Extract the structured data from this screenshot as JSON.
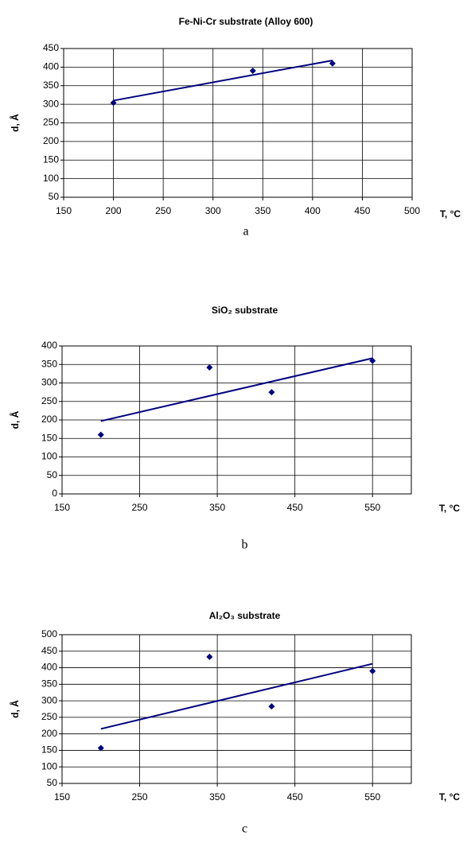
{
  "chart_data": [
    {
      "type": "scatter",
      "title": "Fe-Ni-Cr substrate (Alloy 600)",
      "xlabel": "T, °C",
      "ylabel": "d, Å",
      "caption": "a",
      "xlim": [
        150,
        500
      ],
      "xticks": [
        150,
        200,
        250,
        300,
        350,
        400,
        450,
        500
      ],
      "ylim": [
        50,
        450
      ],
      "yticks": [
        50,
        100,
        150,
        200,
        250,
        300,
        350,
        400,
        450
      ],
      "grid": true,
      "series": [
        {
          "type": "scatter",
          "color": "#000080",
          "x": [
            200,
            340,
            420
          ],
          "values": [
            304,
            390,
            410
          ]
        },
        {
          "type": "line",
          "color": "#000080",
          "x": [
            200,
            420
          ],
          "values": [
            310,
            418
          ]
        }
      ]
    },
    {
      "type": "scatter",
      "title": "SiO₂ substrate",
      "xlabel": "T, °C",
      "ylabel": "d, Å",
      "caption": "b",
      "xlim": [
        150,
        600
      ],
      "xticks": [
        150,
        250,
        350,
        450,
        550
      ],
      "ylim": [
        0,
        400
      ],
      "yticks": [
        0,
        50,
        100,
        150,
        200,
        250,
        300,
        350,
        400
      ],
      "grid": true,
      "series": [
        {
          "type": "scatter",
          "color": "#000080",
          "x": [
            200,
            340,
            420,
            550
          ],
          "values": [
            160,
            342,
            275,
            360
          ]
        },
        {
          "type": "line",
          "color": "#000080",
          "x": [
            200,
            550
          ],
          "values": [
            197,
            367
          ]
        }
      ]
    },
    {
      "type": "scatter",
      "title": "Al₂O₃ substrate",
      "xlabel": "T, °C",
      "ylabel": "d, Å",
      "caption": "c",
      "xlim": [
        150,
        600
      ],
      "xticks": [
        150,
        250,
        350,
        450,
        550
      ],
      "ylim": [
        50,
        500
      ],
      "yticks": [
        50,
        100,
        150,
        200,
        250,
        300,
        350,
        400,
        450,
        500
      ],
      "grid": true,
      "series": [
        {
          "type": "scatter",
          "color": "#000080",
          "x": [
            200,
            340,
            420,
            550
          ],
          "values": [
            157,
            433,
            283,
            390
          ]
        },
        {
          "type": "line",
          "color": "#000080",
          "x": [
            200,
            550
          ],
          "values": [
            215,
            412
          ]
        }
      ]
    }
  ]
}
